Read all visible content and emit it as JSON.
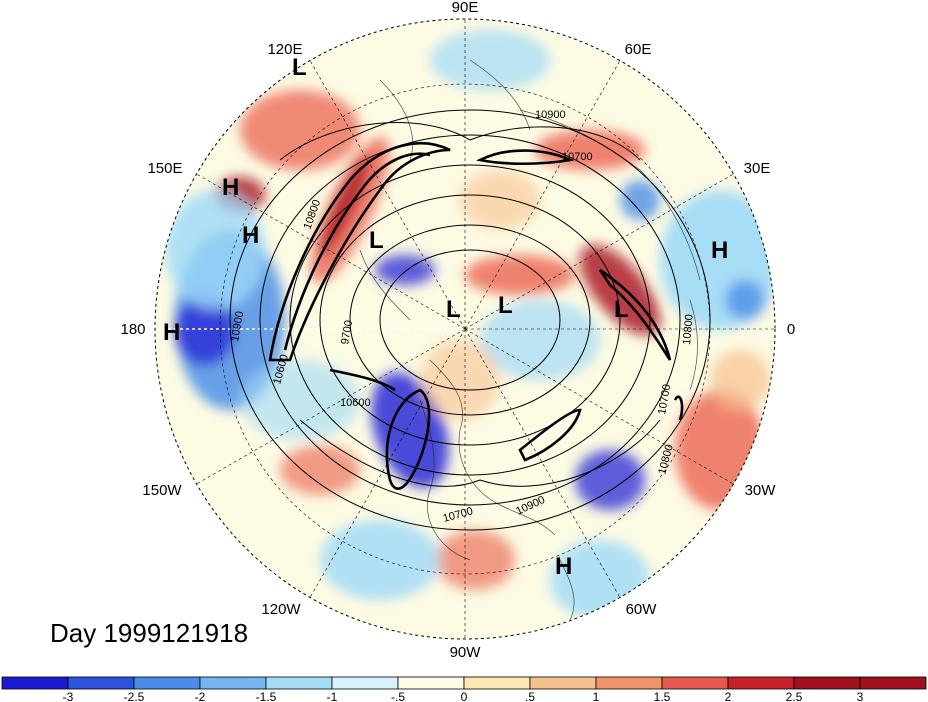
{
  "map": {
    "date_label": "Day 1999121918",
    "longitude_labels": [
      {
        "text": "90E",
        "lon": 90
      },
      {
        "text": "60E",
        "lon": 60
      },
      {
        "text": "30E",
        "lon": 30
      },
      {
        "text": "0",
        "lon": 0
      },
      {
        "text": "30W",
        "lon": -30
      },
      {
        "text": "60W",
        "lon": -60
      },
      {
        "text": "90W",
        "lon": -90
      },
      {
        "text": "120W",
        "lon": -120
      },
      {
        "text": "150W",
        "lon": -150
      },
      {
        "text": "180",
        "lon": 180
      },
      {
        "text": "150E",
        "lon": 150
      },
      {
        "text": "120E",
        "lon": 120
      }
    ],
    "pressure_centers": [
      {
        "type": "L",
        "region": "east-siberia-north"
      },
      {
        "type": "H",
        "region": "western-pacific-a"
      },
      {
        "type": "H",
        "region": "western-pacific-b"
      },
      {
        "type": "L",
        "region": "east-siberia"
      },
      {
        "type": "H",
        "region": "dateline-pacific"
      },
      {
        "type": "L",
        "region": "arctic-central"
      },
      {
        "type": "L",
        "region": "arctic-greenland-side"
      },
      {
        "type": "L",
        "region": "north-atlantic-europe"
      },
      {
        "type": "H",
        "region": "east-europe"
      },
      {
        "type": "H",
        "region": "tropical-atlantic"
      }
    ],
    "contour_labels": [
      "10900",
      "10700",
      "10800",
      "10900",
      "10600",
      "9700",
      "10800",
      "10700",
      "10800",
      "10900",
      "10700",
      "10600"
    ],
    "colors": {
      "strong_negative": "#2a2ad6",
      "negative": "#4d8fe8",
      "weak_negative": "#9ed9f7",
      "neutral": "#fdfbe4",
      "weak_positive": "#f7c18f",
      "positive": "#ea5a46",
      "strong_positive": "#a8121f"
    }
  },
  "colorbar": {
    "ticks": [
      "-3",
      "-2.5",
      "-2",
      "-1.5",
      "-1",
      "-.5",
      "0",
      ".5",
      "1",
      "1.5",
      "2",
      "2.5",
      "3"
    ],
    "colors": [
      "#1a1ad0",
      "#2c52e0",
      "#4a8de9",
      "#72b5f0",
      "#a3ddf8",
      "#d7f2fc",
      "#fdfbe4",
      "#fde7b4",
      "#f7c18f",
      "#f0956a",
      "#e7594c",
      "#c7202b",
      "#a0101e"
    ]
  }
}
